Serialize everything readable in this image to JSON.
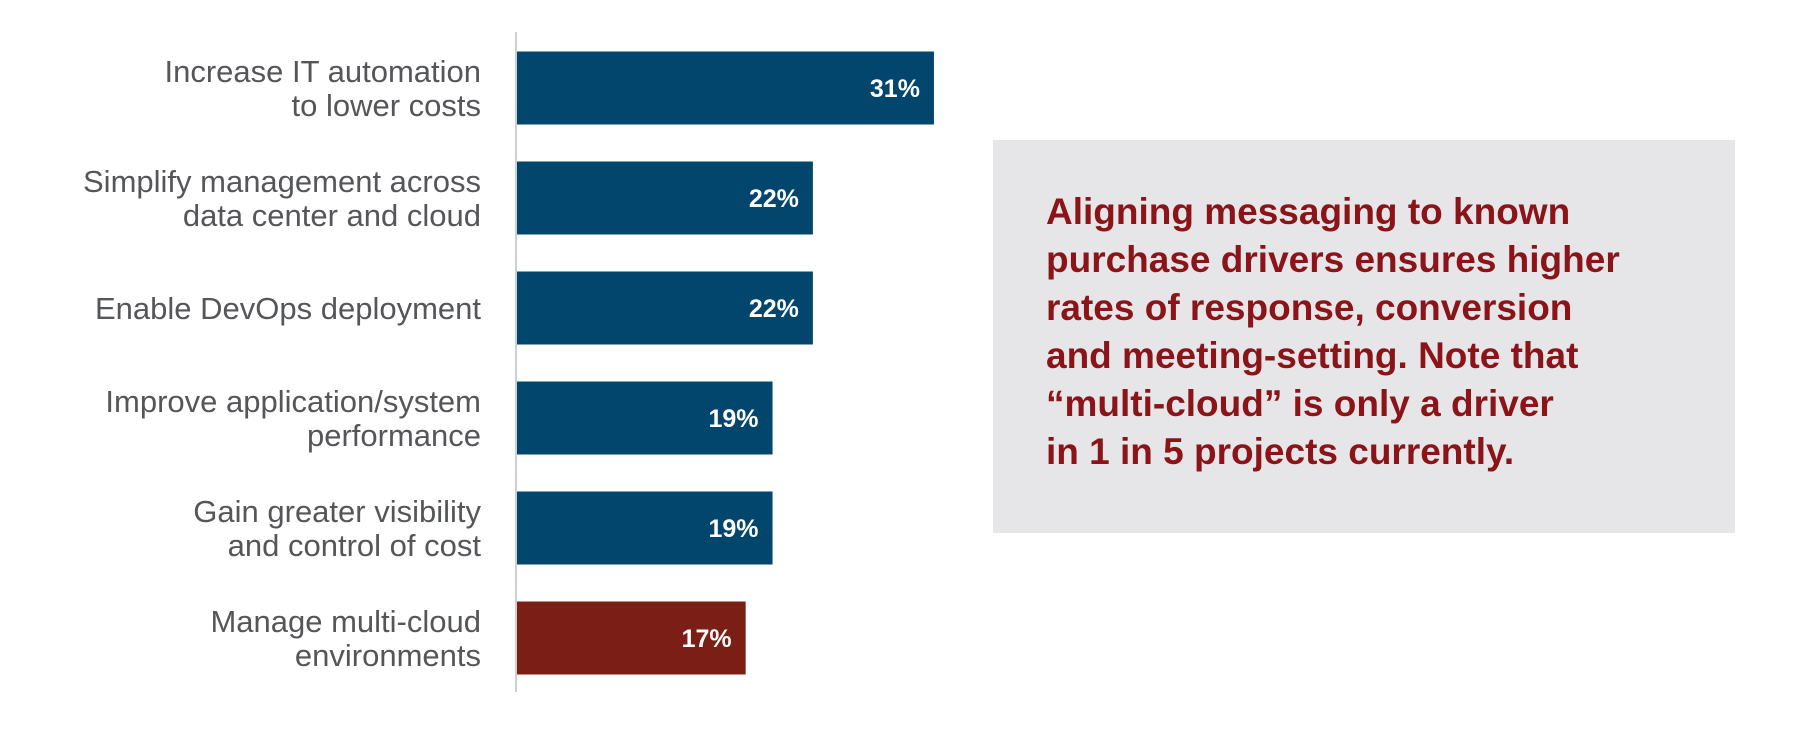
{
  "chart_data": {
    "type": "bar",
    "orientation": "horizontal",
    "categories": [
      [
        "Increase IT automation",
        "to lower costs"
      ],
      [
        "Simplify management across",
        "data center and cloud"
      ],
      [
        "Enable DevOps deployment"
      ],
      [
        "Improve application/system",
        "performance"
      ],
      [
        "Gain greater visibility",
        "and control of cost"
      ],
      [
        "Manage multi-cloud",
        "environments"
      ]
    ],
    "values": [
      31,
      22,
      22,
      19,
      19,
      17
    ],
    "value_labels": [
      "31%",
      "22%",
      "22%",
      "19%",
      "19%",
      "17%"
    ],
    "bar_colors": [
      "#02466e",
      "#02466e",
      "#02466e",
      "#02466e",
      "#02466e",
      "#7b1f16"
    ],
    "axis_color": "#cfcfcf",
    "grid": false,
    "legend": "none"
  },
  "callout": {
    "lines": [
      "Aligning messaging to known",
      "purchase drivers ensures higher",
      "rates of response, conversion",
      "and meeting-setting. Note that",
      "“multi-cloud” is only a driver",
      "in 1 in 5 projects currently."
    ]
  }
}
